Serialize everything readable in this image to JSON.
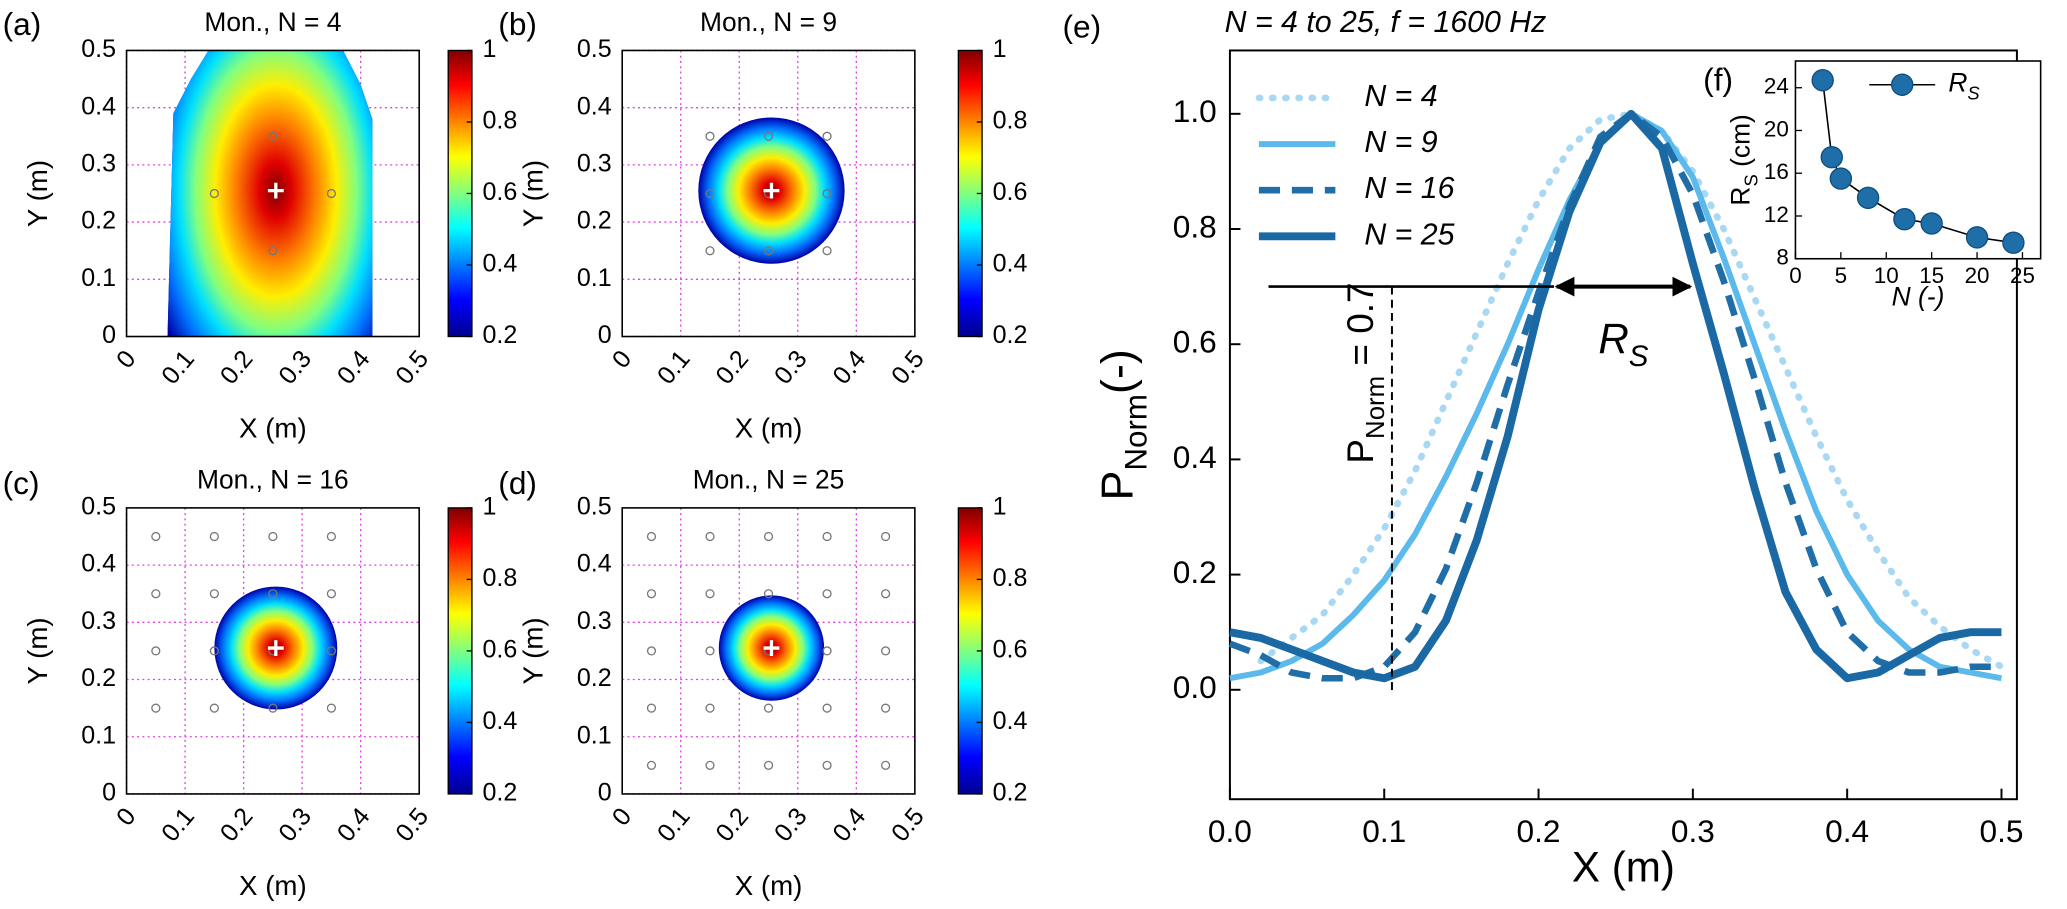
{
  "chart_data": [
    {
      "type": "heatmap",
      "panel_label": "(a)",
      "title": "Mon., N = 4",
      "x_label": "X (m)",
      "y_label": "Y (m)",
      "xlim": [
        0,
        0.5
      ],
      "ylim": [
        0,
        0.5
      ],
      "xticks": [
        0,
        0.1,
        0.2,
        0.3,
        0.4,
        0.5
      ],
      "yticks": [
        0,
        0.1,
        0.2,
        0.3,
        0.4,
        0.5
      ],
      "grid": true,
      "colorbar": {
        "lim": [
          0.2,
          1
        ],
        "ticks": [
          0.2,
          0.4,
          0.6,
          0.8,
          1
        ]
      }
    },
    {
      "type": "heatmap",
      "panel_label": "(b)",
      "title": "Mon., N = 9",
      "x_label": "X (m)",
      "y_label": "Y (m)",
      "xlim": [
        0,
        0.5
      ],
      "ylim": [
        0,
        0.5
      ],
      "xticks": [
        0,
        0.1,
        0.2,
        0.3,
        0.4,
        0.5
      ],
      "yticks": [
        0,
        0.1,
        0.2,
        0.3,
        0.4,
        0.5
      ],
      "grid": true,
      "colorbar": {
        "lim": [
          0.2,
          1
        ],
        "ticks": [
          0.2,
          0.4,
          0.6,
          0.8,
          1
        ]
      }
    },
    {
      "type": "heatmap",
      "panel_label": "(c)",
      "title": "Mon., N = 16",
      "x_label": "X (m)",
      "y_label": "Y (m)",
      "xlim": [
        0,
        0.5
      ],
      "ylim": [
        0,
        0.5
      ],
      "xticks": [
        0,
        0.1,
        0.2,
        0.3,
        0.4,
        0.5
      ],
      "yticks": [
        0,
        0.1,
        0.2,
        0.3,
        0.4,
        0.5
      ],
      "grid": true,
      "colorbar": {
        "lim": [
          0.2,
          1
        ],
        "ticks": [
          0.2,
          0.4,
          0.6,
          0.8,
          1
        ]
      }
    },
    {
      "type": "heatmap",
      "panel_label": "(d)",
      "title": "Mon., N = 25",
      "x_label": "X (m)",
      "y_label": "Y (m)",
      "xlim": [
        0,
        0.5
      ],
      "ylim": [
        0,
        0.5
      ],
      "xticks": [
        0,
        0.1,
        0.2,
        0.3,
        0.4,
        0.5
      ],
      "yticks": [
        0,
        0.1,
        0.2,
        0.3,
        0.4,
        0.5
      ],
      "grid": true,
      "colorbar": {
        "lim": [
          0.2,
          1
        ],
        "ticks": [
          0.2,
          0.4,
          0.6,
          0.8,
          1
        ]
      }
    },
    {
      "type": "line",
      "panel_label": "(e)",
      "title": "N = 4 to 25, f = 1600 Hz",
      "x_label": "X (m)",
      "y_label": {
        "main": "P",
        "sub": "Norm",
        "unit": "(-)"
      },
      "x": [
        0,
        0.02,
        0.04,
        0.06,
        0.08,
        0.1,
        0.12,
        0.14,
        0.16,
        0.18,
        0.2,
        0.22,
        0.24,
        0.26,
        0.28,
        0.3,
        0.32,
        0.34,
        0.36,
        0.38,
        0.4,
        0.42,
        0.44,
        0.46,
        0.48,
        0.5
      ],
      "series": [
        {
          "name": "N = 4",
          "color": "#a9d9f2",
          "style": "dotted",
          "values": [
            null,
            0.05,
            0.09,
            0.13,
            0.2,
            0.28,
            0.38,
            0.5,
            0.62,
            0.74,
            0.85,
            0.94,
            0.99,
            1.0,
            0.97,
            0.9,
            0.8,
            0.68,
            0.56,
            0.44,
            0.33,
            0.24,
            0.16,
            0.11,
            0.07,
            0.04
          ]
        },
        {
          "name": "N = 9",
          "color": "#5bb9ec",
          "style": "solid",
          "values": [
            0.02,
            0.03,
            0.05,
            0.08,
            0.13,
            0.19,
            0.27,
            0.37,
            0.48,
            0.6,
            0.73,
            0.85,
            0.95,
            1.0,
            0.97,
            0.89,
            0.75,
            0.6,
            0.45,
            0.31,
            0.2,
            0.12,
            0.07,
            0.04,
            0.03,
            0.02
          ]
        },
        {
          "name": "N = 16",
          "color": "#1f6ea8",
          "style": "dashed",
          "values": [
            0.08,
            0.06,
            0.03,
            0.02,
            0.02,
            0.04,
            0.1,
            0.21,
            0.36,
            0.53,
            0.69,
            0.84,
            0.96,
            1.0,
            0.96,
            0.86,
            0.71,
            0.54,
            0.36,
            0.21,
            0.1,
            0.05,
            0.03,
            0.03,
            0.04,
            0.04
          ]
        },
        {
          "name": "N = 25",
          "color": "#1b69a4",
          "style": "thick",
          "values": [
            0.1,
            0.09,
            0.07,
            0.05,
            0.03,
            0.02,
            0.04,
            0.12,
            0.26,
            0.44,
            0.66,
            0.83,
            0.95,
            1.0,
            0.94,
            0.74,
            0.55,
            0.35,
            0.17,
            0.07,
            0.02,
            0.03,
            0.06,
            0.09,
            0.1,
            0.1
          ]
        }
      ],
      "xlim": [
        0,
        0.51
      ],
      "ylim": [
        -0.19,
        1.11
      ],
      "xticks": [
        {
          "value": 0,
          "label": "0.0"
        },
        0.1,
        0.2,
        0.3,
        0.4,
        0.5
      ],
      "yticks": [
        {
          "value": 0,
          "label": "0.0"
        },
        0.2,
        0.4,
        0.6,
        0.8,
        {
          "value": 1,
          "label": "1.0"
        }
      ],
      "legend": "upper left",
      "annotations": {
        "threshold": 0.7,
        "threshold_x": 0.105,
        "line_start": 0.025,
        "rs_range": [
          0.21,
          0.3
        ],
        "rs_label": {
          "main": "R",
          "sub": "S"
        },
        "threshold_label": {
          "main": "P",
          "sub": "Norm",
          "rest": " = 0.7"
        }
      }
    },
    {
      "type": "scatter-line",
      "panel_label": "(f)",
      "x_label": "N (-)",
      "y_label": {
        "main": "R",
        "sub": "S",
        "unit": " (cm)"
      },
      "x": [
        3,
        4,
        5,
        8,
        12,
        15,
        20,
        24
      ],
      "series": [
        {
          "name": "R",
          "name_sub": "S",
          "color": "#1f6ea8",
          "line_color": "#000000",
          "values": [
            24.7,
            17.5,
            15.5,
            13.7,
            11.7,
            11.3,
            10,
            9.5
          ]
        }
      ],
      "xlim": [
        0,
        27
      ],
      "ylim": [
        8,
        26.5
      ],
      "xticks": [
        0,
        5,
        10,
        15,
        20,
        25
      ],
      "yticks": [
        8,
        12,
        16,
        20,
        24
      ],
      "legend": "upper right"
    }
  ]
}
